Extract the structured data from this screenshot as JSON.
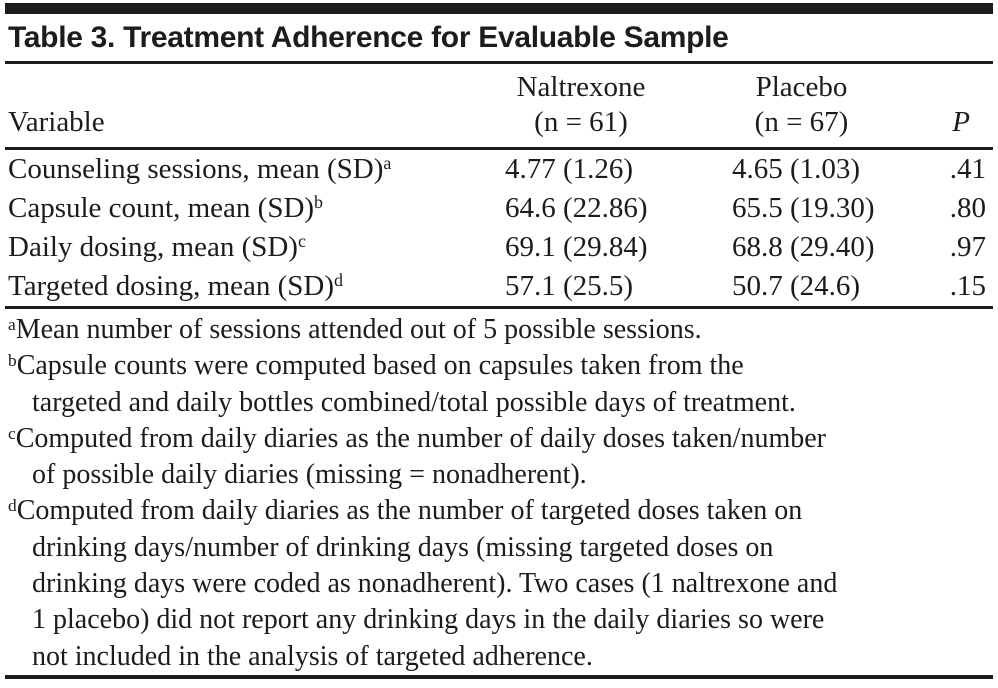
{
  "title": "Table 3. Treatment Adherence for Evaluable Sample",
  "header": {
    "variable": "Variable",
    "naltrexone_line1": "Naltrexone",
    "naltrexone_line2": "(n = 61)",
    "placebo_line1": "Placebo",
    "placebo_line2": "(n = 67)",
    "p": "P"
  },
  "rows": [
    {
      "variable": "Counseling sessions, mean (SD)",
      "sup": "a",
      "naltrexone": "4.77 (1.26)",
      "placebo": "4.65 (1.03)",
      "p": ".41"
    },
    {
      "variable": "Capsule count, mean (SD)",
      "sup": "b",
      "naltrexone": "64.6 (22.86)",
      "placebo": "65.5 (19.30)",
      "p": ".80"
    },
    {
      "variable": "Daily dosing, mean (SD)",
      "sup": "c",
      "naltrexone": "69.1 (29.84)",
      "placebo": "68.8 (29.40)",
      "p": ".97"
    },
    {
      "variable": "Targeted dosing, mean (SD)",
      "sup": "d",
      "naltrexone": "57.1 (25.5)",
      "placebo": "50.7 (24.6)",
      "p": ".15"
    }
  ],
  "footnotes": [
    {
      "sup": "a",
      "lines": [
        "Mean number of sessions attended out of 5 possible sessions."
      ]
    },
    {
      "sup": "b",
      "lines": [
        "Capsule counts were computed based on capsules taken from the",
        "targeted and daily bottles combined/total possible days of treatment."
      ]
    },
    {
      "sup": "c",
      "lines": [
        "Computed from daily diaries as the number of daily doses taken/number",
        "of possible daily diaries (missing = nonadherent)."
      ]
    },
    {
      "sup": "d",
      "lines": [
        "Computed from daily diaries as the number of targeted doses taken on",
        "drinking days/number of drinking days (missing targeted doses on",
        "drinking days were coded as nonadherent). Two cases (1 naltrexone and",
        "1 placebo) did not report any drinking days in the daily diaries so were",
        "not included in the analysis of targeted adherence."
      ]
    }
  ],
  "colors": {
    "text": "#1c1c1c",
    "rule": "#1c1c1c",
    "background": "#ffffff"
  }
}
